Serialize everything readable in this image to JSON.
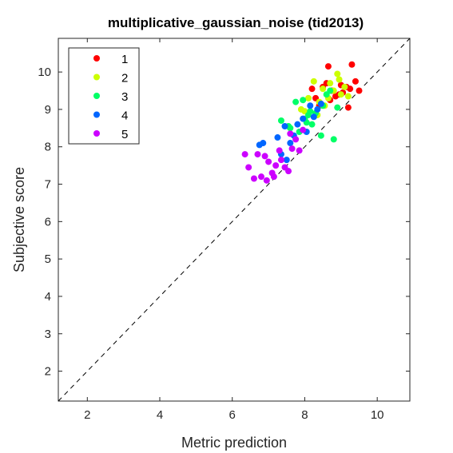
{
  "chart_data": {
    "type": "scatter",
    "title": "multiplicative_gaussian_noise (tid2013)",
    "xlabel": "Metric prediction",
    "ylabel": "Subjective score",
    "xlim": [
      1.2,
      10.9
    ],
    "ylim": [
      1.2,
      10.9
    ],
    "xticks": [
      2,
      4,
      6,
      8,
      10
    ],
    "yticks": [
      2,
      3,
      4,
      5,
      6,
      7,
      8,
      9,
      10
    ],
    "grid": false,
    "legend_position": "top-left",
    "reference_line": "y = x (dashed)",
    "series": [
      {
        "name": "1",
        "color": "#ff0000",
        "x": [
          8.65,
          9.3,
          9.4,
          8.2,
          8.5,
          8.75,
          8.95,
          9.05,
          9.5,
          9.2,
          8.3,
          8.6,
          9.0,
          8.85,
          9.15,
          8.4,
          8.7,
          9.25
        ],
        "y": [
          10.15,
          10.2,
          9.75,
          9.55,
          9.6,
          9.5,
          9.4,
          9.45,
          9.5,
          9.05,
          9.3,
          9.7,
          9.65,
          9.35,
          9.6,
          9.1,
          9.25,
          9.55
        ]
      },
      {
        "name": "2",
        "color": "#ccff00",
        "x": [
          8.9,
          8.25,
          8.1,
          8.5,
          8.7,
          9.0,
          9.2,
          8.4,
          8.0,
          8.55,
          8.8,
          9.1,
          8.35,
          8.65,
          7.9,
          8.95
        ],
        "y": [
          9.95,
          9.75,
          9.3,
          9.55,
          9.7,
          9.4,
          9.35,
          9.2,
          8.95,
          9.1,
          9.5,
          9.6,
          8.85,
          9.3,
          9.0,
          9.8
        ]
      },
      {
        "name": "3",
        "color": "#00ff66",
        "x": [
          7.35,
          7.75,
          7.95,
          8.1,
          8.3,
          8.5,
          8.7,
          7.85,
          8.2,
          8.0,
          8.6,
          8.45,
          8.9,
          7.6,
          8.8,
          8.15,
          8.05,
          7.55
        ],
        "y": [
          8.7,
          9.2,
          9.25,
          8.85,
          8.9,
          9.1,
          9.5,
          8.4,
          8.6,
          8.75,
          9.4,
          8.3,
          9.05,
          8.5,
          8.2,
          8.95,
          8.65,
          8.55
        ],
        "_": "mid cluster"
      },
      {
        "name": "4",
        "color": "#0066ff",
        "x": [
          6.75,
          6.85,
          7.25,
          7.45,
          7.6,
          7.8,
          7.95,
          8.15,
          8.35,
          7.5,
          7.7,
          8.05,
          8.25,
          7.35,
          8.45
        ],
        "y": [
          8.05,
          8.1,
          8.25,
          8.55,
          8.1,
          8.6,
          8.75,
          9.1,
          9.0,
          7.65,
          8.3,
          8.4,
          8.8,
          7.8,
          9.15
        ],
        "_": "mid-low cluster"
      },
      {
        "name": "5",
        "color": "#cc00ff",
        "x": [
          6.35,
          6.45,
          6.6,
          6.8,
          6.9,
          7.0,
          7.1,
          7.2,
          7.3,
          7.45,
          7.55,
          7.75,
          7.95,
          6.7,
          7.15,
          7.6,
          7.85,
          7.35,
          6.95,
          7.65
        ],
        "y": [
          7.8,
          7.45,
          7.15,
          7.2,
          7.75,
          7.6,
          7.3,
          7.5,
          7.9,
          7.45,
          7.35,
          8.2,
          8.45,
          7.8,
          7.2,
          8.35,
          7.9,
          7.65,
          7.1,
          7.95
        ]
      }
    ]
  }
}
